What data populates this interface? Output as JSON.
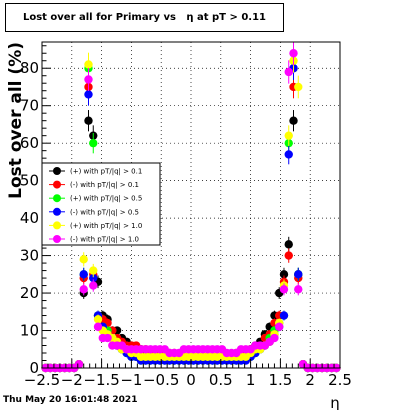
{
  "page_title": "Lost over all for Primary vs   η at pT > 0.11",
  "timestamp": "Thu May 20 16:01:48 2021",
  "chart_data": {
    "type": "scatter",
    "title": "Lost over all for Primary vs   η at pT > 0.11",
    "xlabel": "η",
    "ylabel": "Lost over all (%)",
    "xlim": [
      -2.5,
      2.5
    ],
    "ylim": [
      0,
      87
    ],
    "xticks": [
      -2.5,
      -2,
      -1.5,
      -1,
      -0.5,
      0,
      0.5,
      1,
      1.5,
      2,
      2.5
    ],
    "xtick_labels": [
      "−2.5",
      "−2",
      "−1.5",
      "−1",
      "−0.5",
      "0",
      "0.5",
      "1",
      "1.5",
      "2",
      "2.5"
    ],
    "yticks": [
      0,
      10,
      20,
      30,
      40,
      50,
      60,
      70,
      80
    ],
    "ytick_labels": [
      "0",
      "10",
      "20",
      "30",
      "40",
      "50",
      "60",
      "70",
      "80"
    ],
    "grid": true,
    "legend_position": "middle-left",
    "x": [
      -2.44,
      -2.36,
      -2.28,
      -2.2,
      -2.12,
      -2.04,
      -1.96,
      -1.88,
      -1.8,
      -1.72,
      -1.64,
      -1.56,
      -1.48,
      -1.4,
      -1.32,
      -1.24,
      -1.16,
      -1.08,
      -1.0,
      -0.92,
      -0.84,
      -0.76,
      -0.68,
      -0.6,
      -0.52,
      -0.44,
      -0.36,
      -0.28,
      -0.2,
      -0.12,
      -0.04,
      0.04,
      0.12,
      0.2,
      0.28,
      0.36,
      0.44,
      0.52,
      0.6,
      0.68,
      0.76,
      0.84,
      0.92,
      1.0,
      1.08,
      1.16,
      1.24,
      1.32,
      1.4,
      1.48,
      1.56,
      1.64,
      1.72,
      1.8,
      1.88,
      1.96,
      2.04,
      2.12,
      2.2,
      2.28,
      2.36,
      2.44
    ],
    "series": [
      {
        "name": "(+) with pT/|q| > 0.1",
        "color": "#000000",
        "values": [
          0,
          0,
          0,
          0,
          0,
          0,
          0,
          1,
          20,
          66,
          62,
          23,
          14,
          13,
          10,
          10,
          8,
          7,
          6,
          5,
          5,
          4,
          4,
          3,
          3,
          3,
          3,
          3,
          3,
          3,
          3,
          3,
          3,
          3,
          3,
          3,
          3,
          3,
          3,
          3,
          3,
          3,
          3,
          5,
          6,
          7,
          9,
          11,
          14,
          20,
          25,
          33,
          66,
          25,
          1,
          0,
          0,
          0,
          0,
          0,
          0,
          0
        ]
      },
      {
        "name": "(-) with pT/|q| > 0.1",
        "color": "#ff0000",
        "values": [
          0,
          0,
          0,
          0,
          0,
          0,
          0,
          1,
          24,
          75,
          25,
          14,
          13,
          12,
          10,
          8,
          7,
          6,
          6,
          6,
          5,
          5,
          4,
          4,
          3,
          4,
          4,
          4,
          3,
          3,
          3,
          3,
          3,
          3,
          3,
          3,
          3,
          3,
          3,
          3,
          4,
          4,
          4,
          5,
          5,
          6,
          8,
          9,
          12,
          14,
          23,
          30,
          75,
          24,
          1,
          0,
          0,
          0,
          0,
          0,
          0,
          0
        ]
      },
      {
        "name": "(+) with pT/|q| > 0.5",
        "color": "#00ff00",
        "values": [
          0,
          0,
          0,
          0,
          0,
          0,
          0,
          1,
          25,
          80,
          60,
          14,
          11,
          10,
          8,
          6,
          5,
          4,
          3,
          3,
          2,
          2,
          2,
          2,
          2,
          2,
          2,
          2,
          2,
          2,
          2,
          2,
          2,
          2,
          2,
          2,
          2,
          2,
          2,
          2,
          2,
          2,
          3,
          3,
          4,
          5,
          6,
          8,
          10,
          12,
          14,
          60,
          80,
          25,
          1,
          0,
          0,
          0,
          0,
          0,
          0,
          0
        ]
      },
      {
        "name": "(-) with pT/|q| > 0.5",
        "color": "#0000ff",
        "values": [
          0,
          0,
          0,
          0,
          0,
          0,
          0,
          1,
          25,
          73,
          24,
          14,
          11,
          9,
          8,
          6,
          5,
          4,
          3,
          3,
          2,
          2,
          2,
          2,
          2,
          2,
          2,
          2,
          2,
          2,
          2,
          2,
          2,
          2,
          2,
          2,
          2,
          2,
          2,
          2,
          2,
          2,
          2,
          3,
          4,
          5,
          6,
          7,
          9,
          11,
          14,
          57,
          80,
          25,
          1,
          0,
          0,
          0,
          0,
          0,
          0,
          0
        ]
      },
      {
        "name": "(+) with pT/|q| > 1.0",
        "color": "#ffff00",
        "values": [
          0,
          0,
          0,
          0,
          0,
          0,
          0,
          1,
          29,
          81,
          26,
          13,
          10,
          9,
          8,
          7,
          5,
          5,
          4,
          4,
          3,
          3,
          3,
          3,
          3,
          3,
          3,
          3,
          3,
          3,
          3,
          3,
          3,
          3,
          3,
          3,
          3,
          3,
          3,
          3,
          3,
          3,
          3,
          4,
          5,
          5,
          6,
          7,
          9,
          12,
          22,
          62,
          82,
          75,
          1,
          0,
          0,
          0,
          0,
          0,
          0,
          0
        ]
      },
      {
        "name": "(-) with pT/|q| > 1.0",
        "color": "#ff00ff",
        "values": [
          0,
          0,
          0,
          0,
          0,
          0,
          0,
          1,
          21,
          77,
          22,
          11,
          8,
          8,
          6,
          6,
          6,
          5,
          5,
          5,
          5,
          5,
          5,
          5,
          5,
          5,
          4,
          4,
          4,
          5,
          5,
          5,
          5,
          5,
          5,
          5,
          5,
          5,
          4,
          4,
          4,
          5,
          5,
          5,
          6,
          6,
          6,
          7,
          8,
          11,
          21,
          79,
          84,
          21,
          1,
          0,
          0,
          0,
          0,
          0,
          0,
          0
        ]
      }
    ]
  }
}
